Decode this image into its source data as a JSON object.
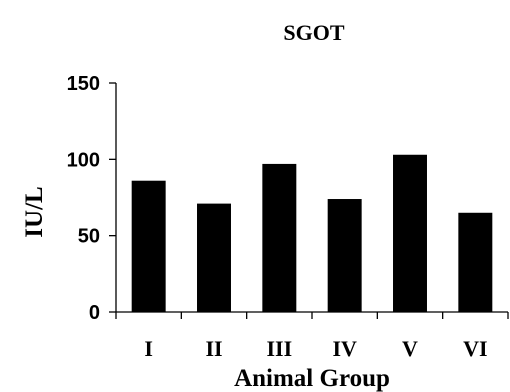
{
  "chart_data": {
    "type": "bar",
    "title": "SGOT",
    "xlabel": "Animal Group",
    "ylabel": "IU/L",
    "categories": [
      "I",
      "II",
      "III",
      "IV",
      "V",
      "VI"
    ],
    "values": [
      86,
      71,
      97,
      74,
      103,
      65
    ],
    "ylim": [
      0,
      150
    ],
    "yticks": [
      0,
      50,
      100,
      150
    ],
    "grid": false,
    "legend": "none",
    "bar_color": "#000000"
  }
}
